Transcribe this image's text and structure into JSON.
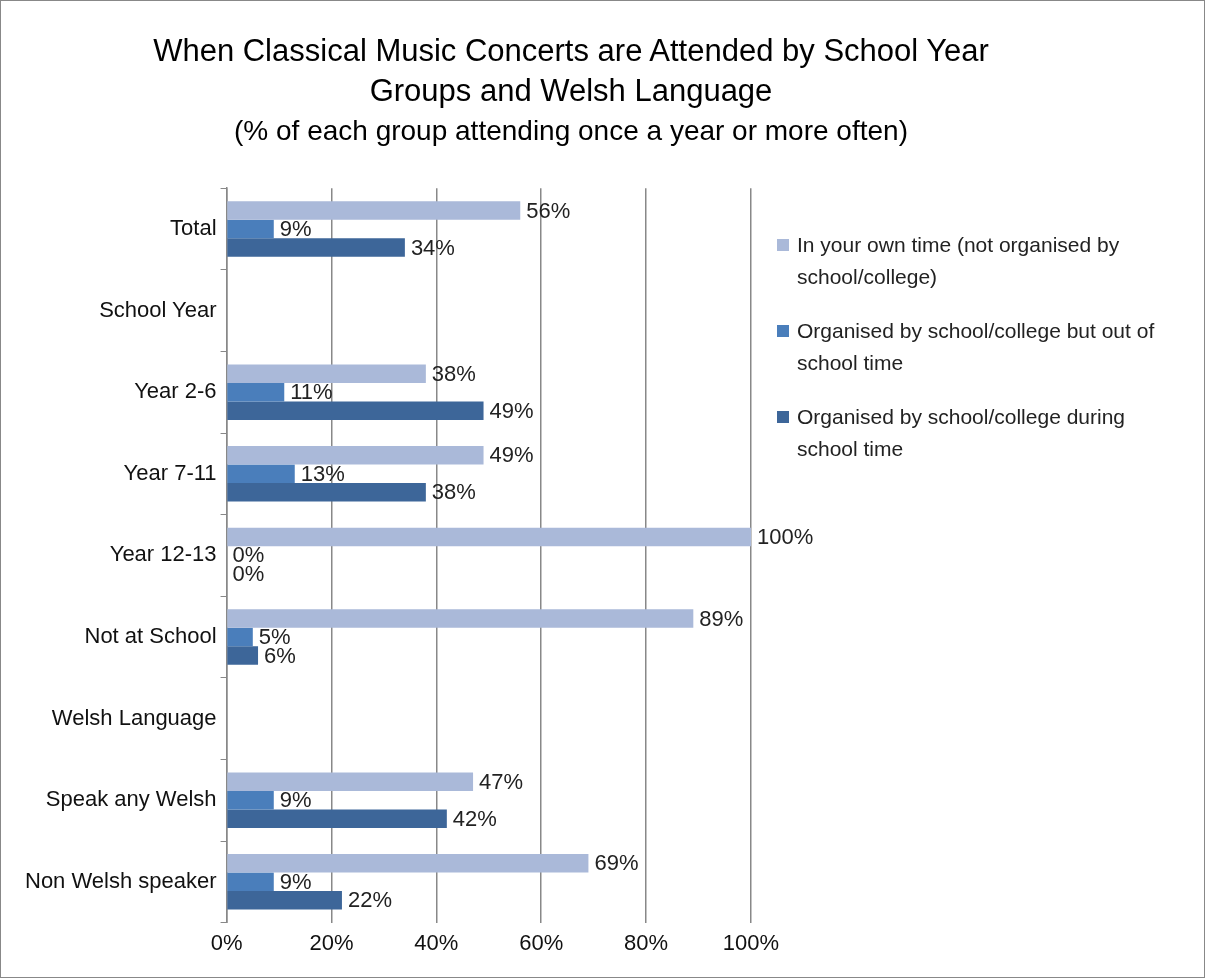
{
  "chart_data": {
    "type": "bar",
    "orientation": "horizontal",
    "title": "When Classical Music Concerts are Attended by School Year Groups and Welsh Language",
    "subtitle": "(% of each group attending once a year or more often)",
    "categories": [
      "Total",
      "School Year",
      "Year 2-6",
      "Year 7-11",
      "Year 12-13",
      "Not at School",
      "Welsh Language",
      "Speak any Welsh",
      "Non Welsh speaker"
    ],
    "series": [
      {
        "name": "In your own time (not organised by school/college)",
        "color": "#aab9d9",
        "values": [
          56,
          null,
          38,
          49,
          100,
          89,
          null,
          47,
          69
        ],
        "value_labels": [
          "56%",
          null,
          "38%",
          "49%",
          "100%",
          "89%",
          null,
          "47%",
          "69%"
        ]
      },
      {
        "name": "Organised by school/college but out of school time",
        "color": "#4a7ebb",
        "values": [
          9,
          null,
          11,
          13,
          0,
          5,
          null,
          9,
          9
        ],
        "value_labels": [
          "9%",
          null,
          "11%",
          "13%",
          "0%",
          "5%",
          null,
          "9%",
          "9%"
        ]
      },
      {
        "name": "Organised by school/college during school time",
        "color": "#3d6699",
        "values": [
          34,
          null,
          49,
          38,
          0,
          6,
          null,
          42,
          22
        ],
        "value_labels": [
          "34%",
          null,
          "49%",
          "38%",
          "0%",
          "6%",
          null,
          "42%",
          "22%"
        ]
      }
    ],
    "xlim": [
      0,
      100
    ],
    "xticks": [
      {
        "value": 0,
        "label": "0%"
      },
      {
        "value": 20,
        "label": "20%"
      },
      {
        "value": 40,
        "label": "40%"
      },
      {
        "value": 60,
        "label": "60%"
      },
      {
        "value": 80,
        "label": "80%"
      },
      {
        "value": 100,
        "label": "100%"
      }
    ],
    "grid": "x",
    "legend": "right"
  }
}
